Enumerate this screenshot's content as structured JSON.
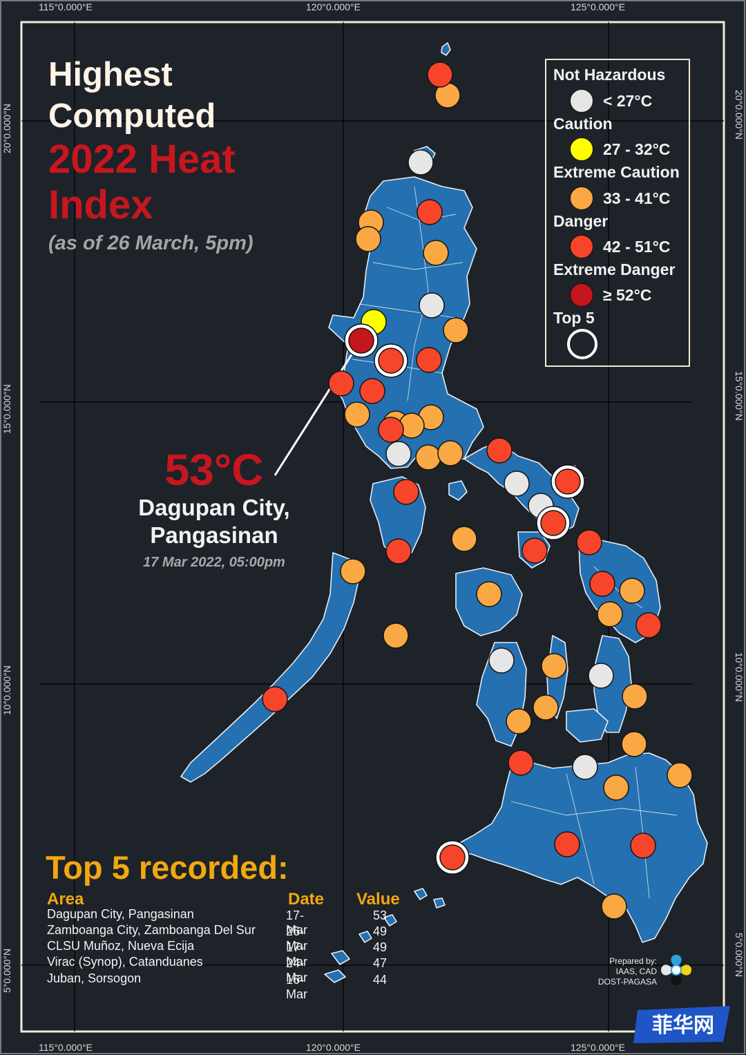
{
  "axes": {
    "top": [
      "115°0.000°E",
      "120°0.000°E",
      "125°0.000°E"
    ],
    "bottom": [
      "115°0.000°E",
      "120°0.000°E",
      "125°0.000°E"
    ],
    "left": [
      "20°0.000°N",
      "15°0.000°N",
      "10°0.000°N",
      "5°0.000°N"
    ],
    "right": [
      "20°0.000°N",
      "15°0.000°N",
      "10°0.000°N",
      "5°0.000°N"
    ]
  },
  "title": {
    "line1": "Highest",
    "line2": "Computed",
    "line3": "2022 Heat",
    "line4": "Index",
    "subtitle": "(as of 26 March, 5pm)"
  },
  "legend": {
    "categories": [
      {
        "label": "Not Hazardous",
        "range": "< 27°C",
        "color": "#e6e6e6"
      },
      {
        "label": "Caution",
        "range": "27 - 32°C",
        "color": "#ffff00"
      },
      {
        "label": "Extreme Caution",
        "range": "33 - 41°C",
        "color": "#f9a843"
      },
      {
        "label": "Danger",
        "range": "42 - 51°C",
        "color": "#f6452a"
      },
      {
        "label": "Extreme Danger",
        "range": "≥ 52°C",
        "color": "#c4161c"
      }
    ],
    "top5_label": "Top 5"
  },
  "callout": {
    "value": "53°C",
    "place_line1": "Dagupan City,",
    "place_line2": "Pangasinan",
    "when": "17 Mar 2022, 05:00pm"
  },
  "top5": {
    "heading": "Top 5 recorded:",
    "columns": {
      "area": "Area",
      "date": "Date",
      "value": "Value"
    },
    "rows": [
      {
        "area": "Dagupan City, Pangasinan",
        "date": "17-Mar",
        "value": "53"
      },
      {
        "area": "Zamboanga City, Zamboanga Del Sur",
        "date": "26-Mar",
        "value": "49"
      },
      {
        "area": "CLSU Muñoz, Nueva Ecija",
        "date": "17-Mar",
        "value": "49"
      },
      {
        "area": "Virac (Synop), Catanduanes",
        "date": "24-Mar",
        "value": "47"
      },
      {
        "area": "Juban, Sorsogon",
        "date": "16-Mar",
        "value": "44"
      }
    ]
  },
  "credit": {
    "line1": "Prepared by:",
    "line2": "IAAS, CAD",
    "line3": "DOST-PAGASA"
  },
  "watermark": "菲华网",
  "colors": {
    "background": "#1e232a",
    "land": "#2470b0",
    "frame": "#f2ead6",
    "title_red": "#c8161e",
    "top5_gold": "#f2a80f"
  }
}
